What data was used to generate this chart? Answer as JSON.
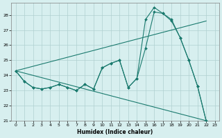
{
  "title": "",
  "xlabel": "Humidex (Indice chaleur)",
  "bg_color": "#d7efef",
  "grid_color": "#b0d0d0",
  "line_color": "#1a7a6e",
  "xlim": [
    -0.5,
    23.5
  ],
  "ylim": [
    21,
    28.8
  ],
  "yticks": [
    21,
    22,
    23,
    24,
    25,
    26,
    27,
    28
  ],
  "xticks": [
    0,
    1,
    2,
    3,
    4,
    5,
    6,
    7,
    8,
    9,
    10,
    11,
    12,
    13,
    14,
    15,
    16,
    17,
    18,
    19,
    20,
    21,
    22,
    23
  ],
  "series": [
    {
      "x": [
        0,
        1,
        2,
        3,
        4,
        5,
        6,
        7,
        8,
        9,
        10,
        11,
        12,
        13,
        14,
        15,
        16,
        17,
        18,
        19,
        20,
        21,
        22
      ],
      "y": [
        24.3,
        23.6,
        23.2,
        23.1,
        23.2,
        23.4,
        23.2,
        23.0,
        23.4,
        23.1,
        24.5,
        24.8,
        25.0,
        23.2,
        23.8,
        25.8,
        28.2,
        28.1,
        27.6,
        26.5,
        25.0,
        23.3,
        21.0
      ],
      "markers": true
    },
    {
      "x": [
        0,
        1,
        2,
        3,
        4,
        5,
        6,
        7,
        8,
        9,
        10,
        11,
        12,
        13,
        14,
        15,
        16,
        17,
        18,
        19,
        20,
        21,
        22
      ],
      "y": [
        24.3,
        23.6,
        23.2,
        23.1,
        23.2,
        23.4,
        23.2,
        23.0,
        23.4,
        23.1,
        24.5,
        24.8,
        25.0,
        23.2,
        23.8,
        27.7,
        28.5,
        28.1,
        27.7,
        26.5,
        25.0,
        23.3,
        21.0
      ],
      "markers": true
    },
    {
      "x": [
        0,
        22
      ],
      "y": [
        24.3,
        21.0
      ],
      "markers": false
    },
    {
      "x": [
        0,
        22
      ],
      "y": [
        24.3,
        27.6
      ],
      "markers": false
    }
  ],
  "marker": "D",
  "markersize": 2.0,
  "linewidth": 0.8
}
